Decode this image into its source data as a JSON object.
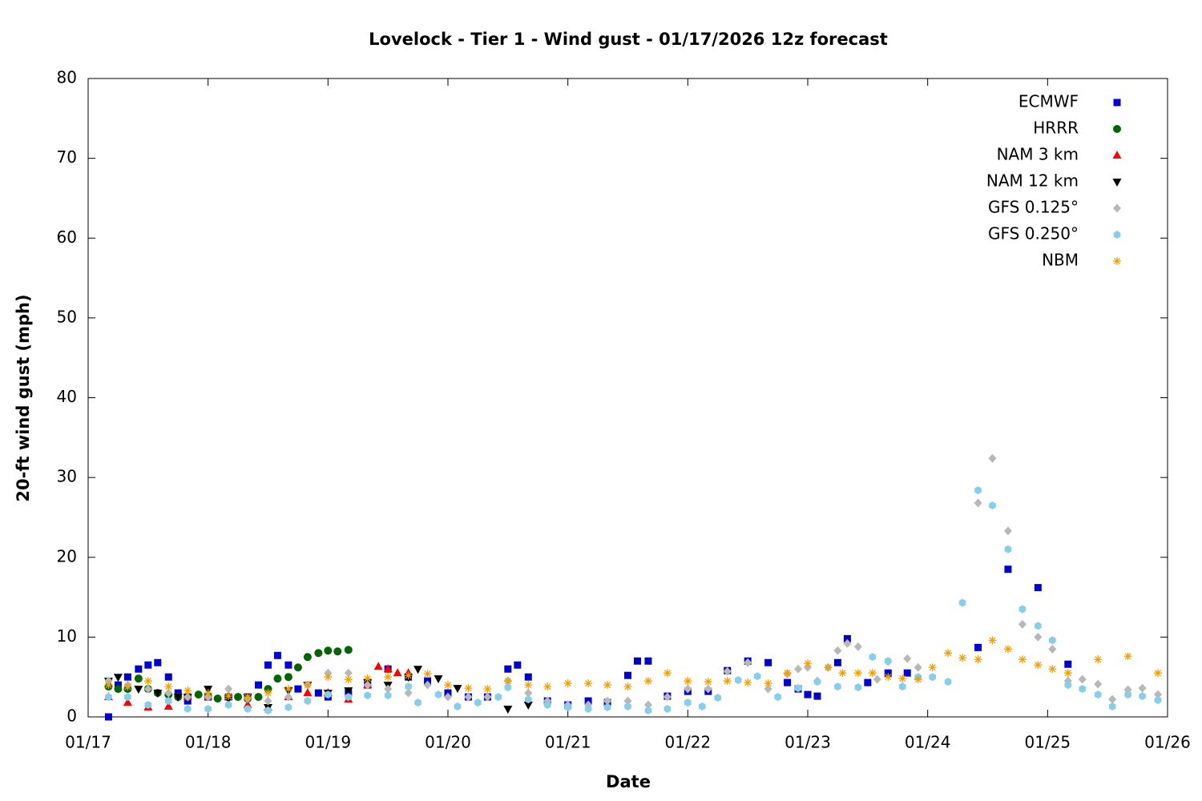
{
  "chart_data": {
    "type": "scatter",
    "title": "Lovelock - Tier 1 - Wind gust - 01/17/2026 12z forecast",
    "x_label": "Date",
    "y_label": "20-ft wind gust (mph)",
    "xlim": [
      0,
      9
    ],
    "xticks": [
      {
        "value": 0,
        "label": "01/17"
      },
      {
        "value": 1,
        "label": "01/18"
      },
      {
        "value": 2,
        "label": "01/19"
      },
      {
        "value": 3,
        "label": "01/20"
      },
      {
        "value": 4,
        "label": "01/21"
      },
      {
        "value": 5,
        "label": "01/22"
      },
      {
        "value": 6,
        "label": "01/23"
      },
      {
        "value": 7,
        "label": "01/24"
      },
      {
        "value": 8,
        "label": "01/25"
      },
      {
        "value": 9,
        "label": "01/26"
      }
    ],
    "ylim": [
      0,
      80
    ],
    "yticks": [
      0,
      10,
      20,
      30,
      40,
      50,
      60,
      70,
      80
    ],
    "grid": false,
    "legend": "upper right",
    "series": [
      {
        "name": "ECMWF",
        "color": "#0000cc",
        "marker": "square",
        "x": [
          0.17,
          0.25,
          0.33,
          0.42,
          0.5,
          0.58,
          0.67,
          0.75,
          0.83,
          1.0,
          1.17,
          1.33,
          1.42,
          1.5,
          1.58,
          1.67,
          1.75,
          1.92,
          2.0,
          2.17,
          2.33,
          2.5,
          2.67,
          2.83,
          3.0,
          3.17,
          3.33,
          3.5,
          3.58,
          3.67,
          3.83,
          4.0,
          4.17,
          4.33,
          4.5,
          4.58,
          4.67,
          4.83,
          5.0,
          5.17,
          5.33,
          5.5,
          5.67,
          5.83,
          5.92,
          6.0,
          6.08,
          6.25,
          6.33,
          6.5,
          6.67,
          6.83,
          7.42,
          7.67,
          7.92,
          8.17
        ],
        "values": [
          0,
          4,
          5,
          6,
          6.5,
          6.8,
          5,
          3,
          2,
          2.5,
          2.5,
          2.5,
          4,
          6.5,
          7.7,
          6.5,
          3.5,
          3,
          2.5,
          3,
          4,
          6,
          5,
          4.5,
          3,
          2.5,
          2.5,
          6,
          6.5,
          5,
          2,
          1.5,
          2,
          1.8,
          5.2,
          7,
          7,
          2.6,
          3.2,
          3.2,
          5.8,
          7,
          6.8,
          4.3,
          3.5,
          2.8,
          2.6,
          6.8,
          9.8,
          4.3,
          5.5,
          5.5,
          8.7,
          18.5,
          16.2,
          6.6
        ]
      },
      {
        "name": "HRRR",
        "color": "#006400",
        "marker": "circle",
        "x": [
          0.17,
          0.25,
          0.33,
          0.42,
          0.5,
          0.58,
          0.67,
          0.75,
          0.83,
          0.92,
          1.0,
          1.08,
          1.17,
          1.25,
          1.33,
          1.42,
          1.5,
          1.58,
          1.67,
          1.75,
          1.83,
          1.92,
          2.0,
          2.08,
          2.17
        ],
        "values": [
          3.8,
          3.5,
          3.5,
          4.8,
          3.5,
          3,
          2.8,
          2.5,
          2.5,
          2.8,
          2.5,
          2.3,
          2.5,
          2.5,
          2.3,
          2.5,
          3.5,
          4.8,
          5,
          6.2,
          7.5,
          8,
          8.3,
          8.2,
          8.4
        ]
      },
      {
        "name": "NAM 3 km",
        "color": "#ff0000",
        "marker": "triangle",
        "x": [
          0.17,
          0.33,
          0.5,
          0.67,
          0.83,
          1.0,
          1.17,
          1.33,
          1.5,
          1.67,
          1.83,
          2.0,
          2.17,
          2.33,
          2.42,
          2.5,
          2.58,
          2.67
        ],
        "values": [
          2.5,
          1.8,
          1.2,
          1.3,
          2.5,
          2.5,
          2.5,
          1.5,
          1.2,
          2.5,
          3,
          3,
          2.2,
          4,
          6.3,
          6,
          5.5,
          5.5
        ]
      },
      {
        "name": "NAM 12 km",
        "color": "#000000",
        "marker": "triangle-down",
        "x": [
          0.17,
          0.25,
          0.42,
          0.58,
          0.75,
          0.83,
          1.0,
          1.17,
          1.33,
          1.5,
          1.67,
          1.83,
          2.0,
          2.17,
          2.33,
          2.5,
          2.67,
          2.75,
          2.92,
          3.08,
          3.5,
          3.67
        ],
        "values": [
          4.5,
          5,
          3.5,
          3,
          2.5,
          2.5,
          3.5,
          2.3,
          2.5,
          1.2,
          3.3,
          4,
          3,
          3.3,
          4.3,
          4,
          5,
          6,
          4.8,
          3.6,
          1,
          1.5
        ]
      },
      {
        "name": "GFS 0.125°",
        "color": "#b8b8b8",
        "marker": "diamond",
        "x": [
          0.17,
          0.33,
          0.5,
          0.67,
          0.83,
          1.0,
          1.17,
          1.33,
          1.5,
          1.67,
          1.83,
          2.0,
          2.17,
          2.33,
          2.5,
          2.67,
          2.83,
          3.0,
          3.17,
          3.33,
          3.5,
          3.67,
          3.83,
          4.0,
          4.17,
          4.33,
          4.5,
          4.67,
          4.83,
          5.0,
          5.17,
          5.33,
          5.5,
          5.67,
          5.83,
          5.92,
          6.0,
          6.08,
          6.17,
          6.25,
          6.33,
          6.42,
          6.58,
          6.67,
          6.83,
          6.92,
          7.42,
          7.54,
          7.67,
          7.79,
          7.92,
          8.04,
          8.17,
          8.29,
          8.42,
          8.54,
          8.67,
          8.79,
          8.92
        ],
        "values": [
          4.5,
          4,
          3.5,
          3,
          2.5,
          2.5,
          3.5,
          2.3,
          2,
          2.5,
          4,
          5.5,
          5.5,
          4,
          3.5,
          3,
          4,
          2.5,
          2.5,
          2.5,
          4.5,
          3,
          2,
          1.5,
          1.5,
          2,
          2,
          1.5,
          2.5,
          3.5,
          3.5,
          5.7,
          6.8,
          3.5,
          5.4,
          6,
          6.2,
          4.5,
          6.2,
          8.3,
          9.2,
          8.8,
          4.7,
          6.9,
          7.3,
          6.2,
          26.8,
          32.4,
          23.3,
          11.6,
          10,
          8.5,
          4.5,
          4.7,
          4.1,
          2.2,
          3.4,
          3.6,
          2.8
        ]
      },
      {
        "name": "GFS 0.250°",
        "color": "#87ceeb",
        "marker": "hexagon",
        "x": [
          0.17,
          0.33,
          0.5,
          0.67,
          0.83,
          1.0,
          1.17,
          1.33,
          1.5,
          1.67,
          1.83,
          2.0,
          2.17,
          2.33,
          2.5,
          2.67,
          2.75,
          2.92,
          3.08,
          3.25,
          3.42,
          3.5,
          3.67,
          3.83,
          4.0,
          4.17,
          4.33,
          4.5,
          4.67,
          4.83,
          5.0,
          5.12,
          5.25,
          5.42,
          5.58,
          5.75,
          5.92,
          6.08,
          6.25,
          6.42,
          6.54,
          6.67,
          6.79,
          6.92,
          7.04,
          7.17,
          7.29,
          7.42,
          7.54,
          7.67,
          7.79,
          7.92,
          8.04,
          8.17,
          8.29,
          8.42,
          8.54,
          8.67,
          8.79,
          8.92
        ],
        "values": [
          2.5,
          2.5,
          1.5,
          2,
          1,
          1,
          1.5,
          1,
          0.8,
          1.2,
          2,
          2.8,
          2.5,
          2.7,
          2.7,
          3.8,
          1.8,
          2.8,
          1.3,
          1.8,
          2.5,
          3.7,
          2.2,
          1.5,
          1.2,
          1,
          1.2,
          1.3,
          0.8,
          1,
          1.8,
          1.3,
          2.4,
          4.6,
          5.1,
          2.5,
          3.6,
          4.4,
          3.8,
          3.7,
          7.5,
          7,
          3.8,
          5,
          5,
          4.4,
          14.3,
          28.4,
          26.5,
          21,
          13.5,
          11.4,
          9.6,
          4,
          3.5,
          2.8,
          1.3,
          2.8,
          2.6,
          2.1
        ]
      },
      {
        "name": "NBM",
        "color": "#f0a000",
        "marker": "asterisk",
        "x": [
          0.17,
          0.33,
          0.5,
          0.67,
          0.83,
          1.0,
          1.17,
          1.33,
          1.5,
          1.67,
          1.83,
          2.0,
          2.17,
          2.33,
          2.5,
          2.67,
          2.83,
          3.0,
          3.17,
          3.33,
          3.5,
          3.67,
          3.83,
          4.0,
          4.17,
          4.33,
          4.5,
          4.67,
          4.83,
          5.0,
          5.17,
          5.33,
          5.5,
          5.67,
          5.83,
          6.0,
          6.17,
          6.29,
          6.42,
          6.54,
          6.67,
          6.79,
          6.92,
          7.04,
          7.17,
          7.29,
          7.42,
          7.54,
          7.67,
          7.79,
          7.92,
          8.04,
          8.17,
          8.42,
          8.67,
          8.92
        ],
        "values": [
          4,
          3.8,
          4.5,
          3.8,
          3.3,
          3,
          2.6,
          2.5,
          3,
          3.5,
          4,
          5,
          4.7,
          4.8,
          5,
          5.2,
          5.4,
          4,
          3.6,
          3.5,
          4.5,
          4,
          3.8,
          4.2,
          4.2,
          4,
          3.8,
          4.5,
          5.5,
          4.5,
          4.4,
          4.5,
          4.3,
          4.2,
          5.5,
          6.7,
          6.2,
          5.5,
          5.5,
          5.5,
          5,
          4.8,
          4.7,
          6.2,
          8,
          7.4,
          7.2,
          9.6,
          8.5,
          7.2,
          6.5,
          6,
          5.5,
          7.2,
          7.6,
          5.5
        ]
      }
    ]
  }
}
